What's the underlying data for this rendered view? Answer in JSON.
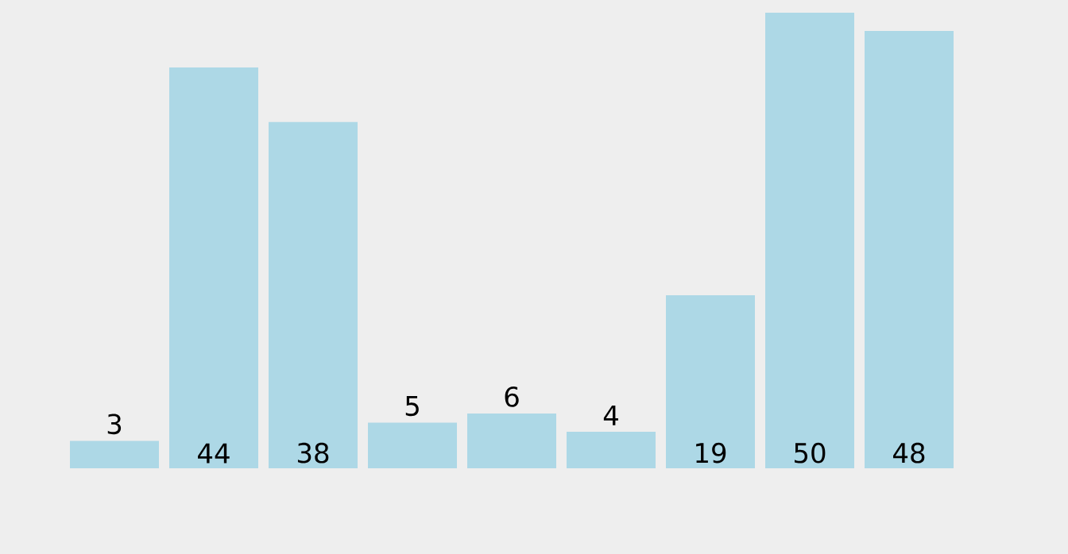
{
  "chart_data": {
    "type": "bar",
    "categories": [
      null,
      null,
      null,
      null,
      null,
      null,
      null,
      null,
      null
    ],
    "values": [
      3,
      44,
      38,
      5,
      6,
      4,
      19,
      50,
      48
    ],
    "color": "#add8e6",
    "data_labels": true
  }
}
